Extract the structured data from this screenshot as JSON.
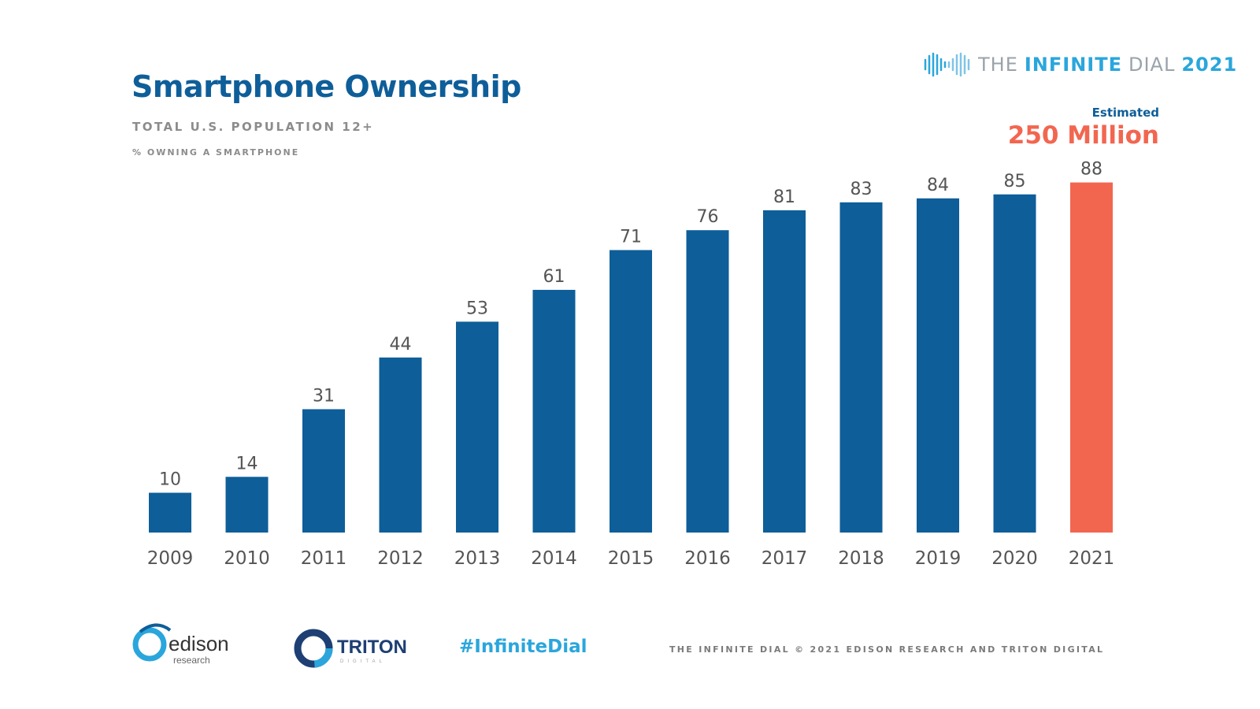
{
  "header": {
    "title": "Smartphone Ownership",
    "subtitle": "TOTAL U.S. POPULATION 12+",
    "subsubtitle": "% OWNING A SMARTPHONE"
  },
  "brand": {
    "prefix": "THE",
    "middle": "INFINITE",
    "suffix": "DIAL",
    "year": "2021",
    "icon": "infinite-dial-waveform-icon"
  },
  "callout": {
    "label": "Estimated",
    "value": "250 Million"
  },
  "chart_data": {
    "type": "bar",
    "categories": [
      "2009",
      "2010",
      "2011",
      "2012",
      "2013",
      "2014",
      "2015",
      "2016",
      "2017",
      "2018",
      "2019",
      "2020",
      "2021"
    ],
    "values": [
      10,
      14,
      31,
      44,
      53,
      61,
      71,
      76,
      81,
      83,
      84,
      85,
      88
    ],
    "title": "Smartphone Ownership",
    "xlabel": "",
    "ylabel": "",
    "ylim": [
      0,
      100
    ],
    "grid": false,
    "legend": "none",
    "colors": {
      "default": "#0e5e99",
      "highlight": "#f26650"
    },
    "highlight_category": "2021"
  },
  "footer": {
    "edison_logo": {
      "name": "edison",
      "sub": "research"
    },
    "triton_logo": {
      "name": "TRITON",
      "sub": "DIGITAL"
    },
    "hashtag": "#InfiniteDial",
    "copyright": "THE INFINITE DIAL   © 2021 EDISON RESEARCH AND TRITON DIGITAL"
  }
}
